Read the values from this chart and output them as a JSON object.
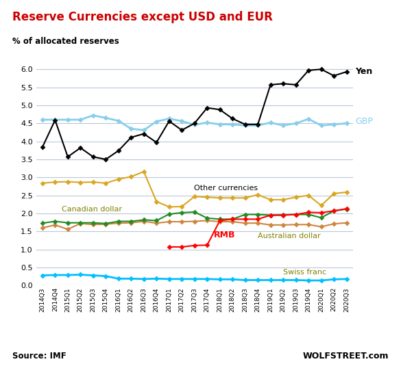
{
  "title": "Reserve Currencies except USD and EUR",
  "ylabel": "% of allocated reserves",
  "source_left": "Source: IMF",
  "source_right": "WOLFSTREET.com",
  "quarters": [
    "2014Q3",
    "2014Q4",
    "2015Q1",
    "2015Q2",
    "2015Q3",
    "2015Q4",
    "2016Q1",
    "2016Q2",
    "2016Q3",
    "2016Q4",
    "2017Q1",
    "2017Q2",
    "2017Q3",
    "2017Q4",
    "2018Q1",
    "2018Q2",
    "2018Q3",
    "2018Q4",
    "2019Q1",
    "2019Q2",
    "2019Q3",
    "2019Q4",
    "2020Q1",
    "2020Q2",
    "2020Q3"
  ],
  "yen": [
    3.84,
    4.59,
    3.57,
    3.82,
    3.57,
    3.5,
    3.74,
    4.11,
    4.21,
    3.97,
    4.56,
    4.31,
    4.5,
    4.93,
    4.88,
    4.63,
    4.47,
    4.47,
    5.57,
    5.6,
    5.57,
    5.97,
    6.0,
    5.82,
    5.93
  ],
  "gbp": [
    4.6,
    4.6,
    4.6,
    4.6,
    4.72,
    4.65,
    4.57,
    4.35,
    4.31,
    4.55,
    4.63,
    4.56,
    4.46,
    4.52,
    4.47,
    4.47,
    4.44,
    4.44,
    4.52,
    4.44,
    4.5,
    4.62,
    4.44,
    4.47,
    4.5
  ],
  "other": [
    2.84,
    2.87,
    2.88,
    2.86,
    2.87,
    2.84,
    2.95,
    3.02,
    3.16,
    2.33,
    2.18,
    2.19,
    2.47,
    2.45,
    2.43,
    2.43,
    2.43,
    2.52,
    2.38,
    2.38,
    2.45,
    2.5,
    2.22,
    2.55,
    2.59
  ],
  "canadian": [
    1.73,
    1.78,
    1.74,
    1.74,
    1.74,
    1.72,
    1.78,
    1.78,
    1.82,
    1.8,
    1.98,
    2.02,
    2.04,
    1.87,
    1.84,
    1.84,
    1.97,
    1.97,
    1.95,
    1.96,
    1.97,
    1.97,
    1.88,
    2.07,
    2.12
  ],
  "rmb": [
    null,
    null,
    null,
    null,
    null,
    null,
    null,
    null,
    null,
    null,
    1.07,
    1.07,
    1.11,
    1.12,
    1.8,
    1.84,
    1.84,
    1.84,
    1.95,
    1.95,
    1.97,
    2.03,
    2.02,
    2.07,
    2.13
  ],
  "australian": [
    1.6,
    1.68,
    1.56,
    1.72,
    1.69,
    1.7,
    1.73,
    1.74,
    1.78,
    1.73,
    1.77,
    1.77,
    1.78,
    1.8,
    1.77,
    1.77,
    1.73,
    1.73,
    1.68,
    1.68,
    1.69,
    1.69,
    1.63,
    1.71,
    1.74
  ],
  "swiss": [
    0.28,
    0.29,
    0.29,
    0.3,
    0.28,
    0.26,
    0.19,
    0.19,
    0.18,
    0.19,
    0.18,
    0.18,
    0.18,
    0.18,
    0.17,
    0.17,
    0.15,
    0.15,
    0.15,
    0.15,
    0.15,
    0.14,
    0.14,
    0.17,
    0.18
  ],
  "colors": {
    "yen": "#000000",
    "gbp": "#87CEEB",
    "other": "#DAA520",
    "canadian": "#228B22",
    "rmb": "#FF0000",
    "australian": "#CD853F",
    "swiss": "#00BFFF"
  },
  "label_colors": {
    "yen": "#000000",
    "gbp": "#87CEEB",
    "other": "#000000",
    "canadian": "#808000",
    "rmb": "#FF0000",
    "australian": "#808000",
    "swiss": "#808000"
  },
  "ylim": [
    0.0,
    6.5
  ],
  "yticks": [
    0.0,
    0.5,
    1.0,
    1.5,
    2.0,
    2.5,
    3.0,
    3.5,
    4.0,
    4.5,
    5.0,
    5.5,
    6.0
  ],
  "title_color": "#CC0000",
  "grid_color": "#B8C8D8",
  "markersize": 3.5,
  "linewidth": 1.5
}
